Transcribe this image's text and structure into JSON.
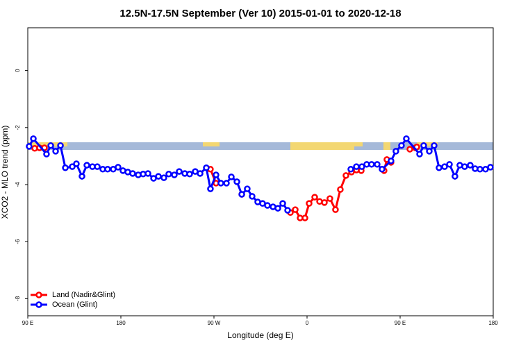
{
  "chart_data": {
    "type": "line",
    "title": "12.5N-17.5N September (Ver 10)   2015-01-01 to 2020-12-18",
    "x_label": "Longitude (deg E)",
    "y_label": "XCO2 - MLO trend (ppm)",
    "xlim": [
      90,
      540
    ],
    "ylim": [
      -8.6,
      1.5
    ],
    "xticks": [
      {
        "value": 90,
        "label": "90 E"
      },
      {
        "value": 180,
        "label": "180"
      },
      {
        "value": 270,
        "label": "90 W"
      },
      {
        "value": 360,
        "label": "0"
      },
      {
        "value": 450,
        "label": "90 E"
      },
      {
        "value": 540,
        "label": "180"
      }
    ],
    "yticks": [
      0,
      -2,
      -4,
      -6,
      -8
    ],
    "legend": "bottomleft",
    "series": [
      {
        "name": "Land (Nadir&Glint)",
        "color": "#ff0000",
        "x": [
          96.7,
          101.4,
          106.1,
          null,
          266.6,
          272.0,
          null,
          296.9,
          null,
          343.9,
          348.6,
          353.3,
          358.0,
          362.0,
          367.4,
          372.1,
          376.8,
          382.1,
          387.5,
          392.2,
          397.6,
          403.0,
          407.7,
          412.4,
          null,
          434.5,
          437.2,
          441.2,
          null,
          459.4,
          464.8,
          466.1
        ],
        "values": [
          -2.73,
          -2.71,
          -2.71,
          null,
          -3.46,
          -3.95,
          null,
          -4.34,
          null,
          -4.98,
          -4.88,
          -5.17,
          -5.17,
          -4.66,
          -4.44,
          -4.59,
          -4.63,
          -4.49,
          -4.88,
          -4.17,
          -3.68,
          -3.56,
          -3.49,
          -3.51,
          null,
          -3.51,
          -3.12,
          -3.22,
          null,
          -2.76,
          -2.71,
          -2.68
        ]
      },
      {
        "name": "Ocean (Glint)",
        "color": "#0000ff",
        "x": [
          91.3,
          95.4,
          108.1,
          112.2,
          116.9,
          121.6,
          126.3,
          133.0,
          137.0,
          142.4,
          147.1,
          152.5,
          157.2,
          162.5,
          167.2,
          172.6,
          177.3,
          182.0,
          186.7,
          191.4,
          196.8,
          201.5,
          206.2,
          211.6,
          216.3,
          221.6,
          226.3,
          231.7,
          236.4,
          241.8,
          246.5,
          251.9,
          256.6,
          262.6,
          266.6,
          272.0,
          276.7,
          282.1,
          286.8,
          292.2,
          296.9,
          302.2,
          306.9,
          312.3,
          317.0,
          321.7,
          327.1,
          331.8,
          336.5,
          341.2,
          null,
          402.3,
          407.7,
          413.0,
          417.7,
          422.4,
          427.8,
          432.5,
          441.2,
          445.9,
          451.3,
          456.0,
          468.8,
          472.8,
          478.2,
          482.9,
          487.6,
          493.0,
          497.7,
          503.0,
          507.7,
          512.4,
          517.8,
          522.5,
          527.2,
          532.6,
          537.3
        ],
        "values": [
          -2.66,
          -2.39,
          -2.93,
          -2.63,
          -2.83,
          -2.63,
          -3.41,
          -3.37,
          -3.27,
          -3.71,
          -3.32,
          -3.37,
          -3.37,
          -3.46,
          -3.46,
          -3.46,
          -3.39,
          -3.51,
          -3.56,
          -3.61,
          -3.66,
          -3.63,
          -3.61,
          -3.78,
          -3.71,
          -3.76,
          -3.63,
          -3.66,
          -3.54,
          -3.61,
          -3.63,
          -3.54,
          -3.61,
          -3.41,
          -4.15,
          -3.66,
          -3.95,
          -3.95,
          -3.73,
          -3.9,
          -4.34,
          -4.15,
          -4.41,
          -4.61,
          -4.66,
          -4.73,
          -4.78,
          -4.83,
          -4.66,
          -4.9,
          null,
          -3.46,
          -3.37,
          -3.37,
          -3.29,
          -3.29,
          -3.29,
          -3.46,
          -3.17,
          -2.83,
          -2.63,
          -2.39,
          -2.93,
          -2.63,
          -2.83,
          -2.63,
          -3.41,
          -3.37,
          -3.29,
          -3.71,
          -3.32,
          -3.37,
          -3.32,
          -3.44,
          -3.46,
          -3.46,
          -3.39
        ]
      }
    ]
  }
}
